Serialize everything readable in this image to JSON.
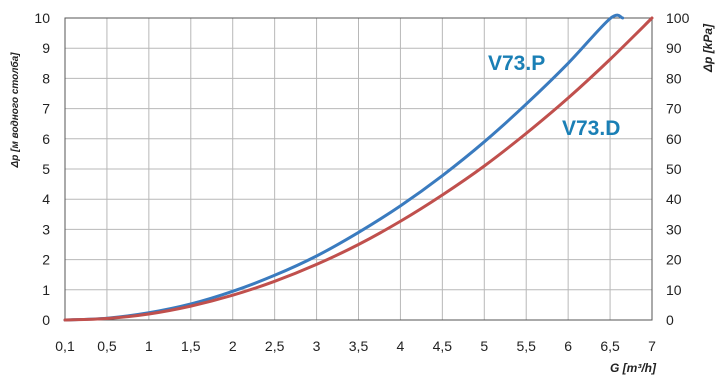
{
  "chart_data": {
    "type": "line",
    "xlabel": "G [m³/h]",
    "ylabel_left": "Δp [м водного столба]",
    "ylabel_right": "Δp [kPa]",
    "x_ticks": [
      0.1,
      0.5,
      1,
      1.5,
      2,
      2.5,
      3,
      3.5,
      4,
      4.5,
      5,
      5.5,
      6,
      6.5,
      7
    ],
    "x_tick_labels": [
      "0,1",
      "0,5",
      "1",
      "1,5",
      "2",
      "2,5",
      "3",
      "3,5",
      "4",
      "4,5",
      "5",
      "5,5",
      "6",
      "6,5",
      "7"
    ],
    "xlim": [
      0.1,
      7
    ],
    "ylim_left": [
      0,
      10
    ],
    "ylim_right": [
      0,
      100
    ],
    "y_ticks_left": [
      "0",
      "1",
      "2",
      "3",
      "4",
      "5",
      "6",
      "7",
      "8",
      "9",
      "10"
    ],
    "y_ticks_right": [
      "0",
      "10",
      "20",
      "30",
      "40",
      "50",
      "60",
      "70",
      "80",
      "90",
      "100"
    ],
    "grid": true,
    "series": [
      {
        "name": "V73.P",
        "color": "#3a7bbf",
        "label_color": "#1a7fb5",
        "x": [
          0.1,
          0.5,
          1,
          1.5,
          2,
          2.5,
          3,
          3.5,
          4,
          4.5,
          5,
          5.5,
          6,
          6.5,
          6.65
        ],
        "y": [
          0.0,
          0.06,
          0.24,
          0.53,
          0.95,
          1.48,
          2.12,
          2.9,
          3.78,
          4.78,
          5.9,
          7.15,
          8.5,
          9.98,
          10.0
        ]
      },
      {
        "name": "V73.D",
        "color": "#c0504d",
        "label_color": "#1a7fb5",
        "x": [
          0.1,
          0.5,
          1,
          1.5,
          2,
          2.5,
          3,
          3.5,
          4,
          4.5,
          5,
          5.5,
          6,
          6.5,
          7
        ],
        "y": [
          0.0,
          0.05,
          0.2,
          0.46,
          0.82,
          1.28,
          1.84,
          2.5,
          3.27,
          4.14,
          5.1,
          6.18,
          7.35,
          8.63,
          10.0
        ]
      }
    ]
  }
}
